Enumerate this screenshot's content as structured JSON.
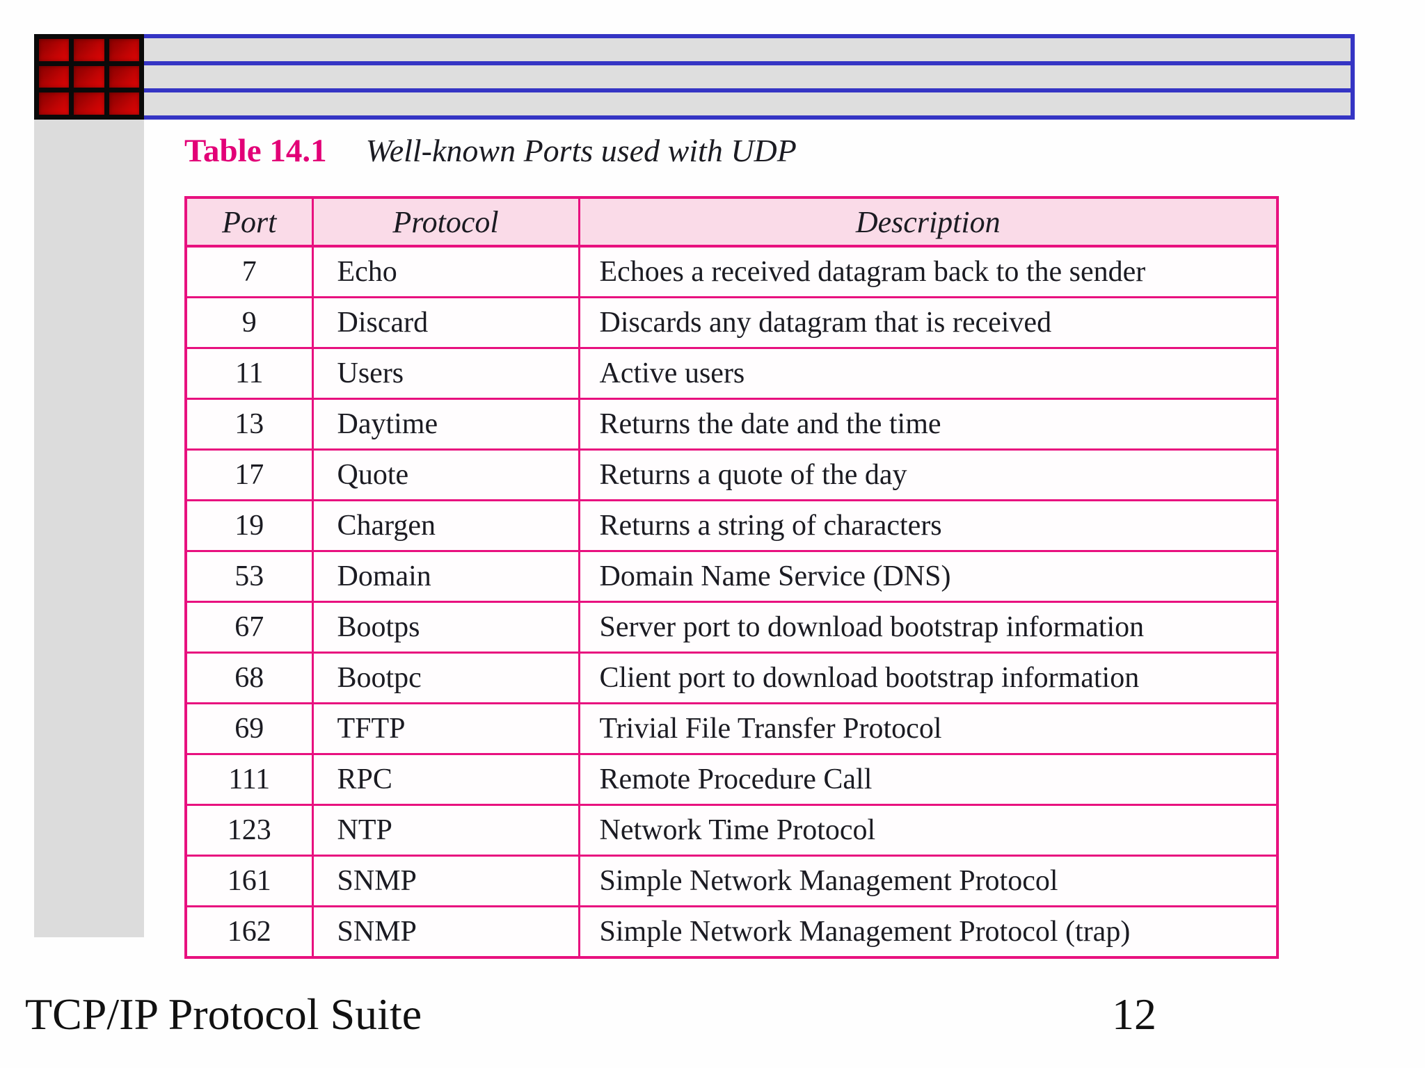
{
  "slide": {
    "caption_label": "Table 14.1",
    "caption_title": "Well-known Ports used with UDP",
    "footer_left": "TCP/IP Protocol Suite",
    "page_number": "12"
  },
  "table": {
    "headers": {
      "port": "Port",
      "protocol": "Protocol",
      "description": "Description"
    },
    "rows": [
      {
        "port": "7",
        "protocol": "Echo",
        "description": "Echoes a received datagram back to the sender"
      },
      {
        "port": "9",
        "protocol": "Discard",
        "description": "Discards any datagram that is received"
      },
      {
        "port": "11",
        "protocol": "Users",
        "description": "Active users"
      },
      {
        "port": "13",
        "protocol": "Daytime",
        "description": "Returns the date and the time"
      },
      {
        "port": "17",
        "protocol": "Quote",
        "description": "Returns a quote of the day"
      },
      {
        "port": "19",
        "protocol": "Chargen",
        "description": "Returns a string of characters"
      },
      {
        "port": "53",
        "protocol": "Domain",
        "description": "Domain Name Service (DNS)"
      },
      {
        "port": "67",
        "protocol": "Bootps",
        "description": "Server port to download bootstrap information"
      },
      {
        "port": "68",
        "protocol": "Bootpc",
        "description": "Client port to download bootstrap information"
      },
      {
        "port": "69",
        "protocol": "TFTP",
        "description": "Trivial File Transfer Protocol"
      },
      {
        "port": "111",
        "protocol": "RPC",
        "description": "Remote Procedure Call"
      },
      {
        "port": "123",
        "protocol": "NTP",
        "description": "Network Time Protocol"
      },
      {
        "port": "161",
        "protocol": "SNMP",
        "description": "Simple Network Management Protocol"
      },
      {
        "port": "162",
        "protocol": "SNMP",
        "description": "Simple Network Management Protocol (trap)"
      }
    ]
  },
  "colors": {
    "accent_magenta": "#e8117f",
    "caption_magenta": "#e20077",
    "header_row_pink": "#fadbe8",
    "bar_blue": "#3535c4",
    "bar_gray": "#dedede",
    "strip_gray": "#dcdcdc",
    "logo_red": "#c40404"
  }
}
